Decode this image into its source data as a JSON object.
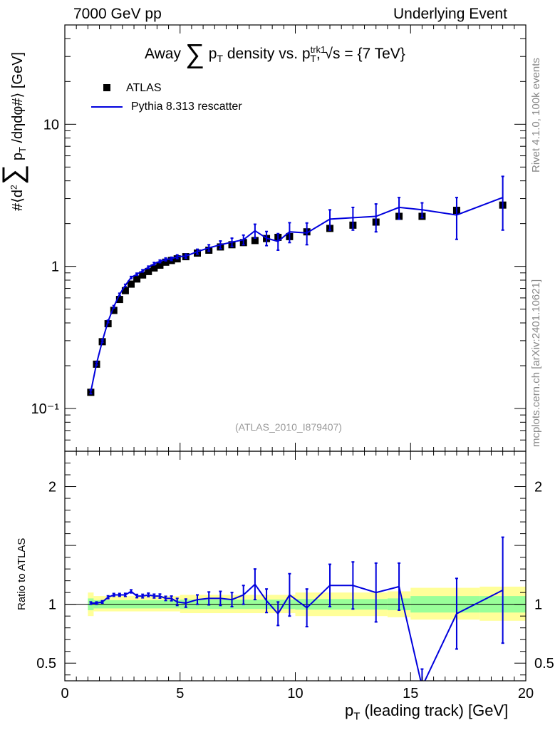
{
  "header": {
    "left": "7000 GeV pp",
    "right": "Underlying Event"
  },
  "side_text": {
    "rivet": "Rivet 4.1.0,  100k events",
    "mcplots": "mcplots.cern.ch [arXiv:2401.10621]"
  },
  "colors": {
    "mc": "#0000dd",
    "data": "#000000",
    "band_inner": "#99ff99",
    "band_outer": "#ffff99"
  },
  "chart_data": [
    {
      "type": "scatter",
      "title": "Away Σ pT density vs. pT^trk1, √s = {7 TeV}",
      "title_parts": {
        "away": "Away",
        "sum": "∑",
        "p": "p",
        "t": "T",
        "rest": "density vs. p",
        "trk": "trk1",
        "t2": "T",
        "tail": ", √s = {7 TeV}"
      },
      "ylabel": "#⟨d² ∑ pT /dηdφ#⟩ [GeV]",
      "ylabel_parts": {
        "a": "#⟨d",
        "sq": "2",
        "sum": "∑",
        "p": " p",
        "t": "T",
        "b": " /dηdφ#⟩ [GeV]"
      },
      "yscale": "log",
      "ylim": [
        0.05,
        50
      ],
      "xlim": [
        0,
        20
      ],
      "yticks": [
        {
          "value": 0.1,
          "label": "10⁻¹"
        },
        {
          "value": 1,
          "label": "1"
        },
        {
          "value": 10,
          "label": "10"
        }
      ],
      "reference": "(ATLAS_2010_I879407)",
      "legend": [
        {
          "name": "ATLAS",
          "marker": "square"
        },
        {
          "name": "Pythia 8.313 rescatter",
          "marker": "line"
        }
      ],
      "series": [
        {
          "name": "ATLAS",
          "x": [
            1.125,
            1.375,
            1.625,
            1.875,
            2.125,
            2.375,
            2.625,
            2.875,
            3.125,
            3.375,
            3.625,
            3.875,
            4.125,
            4.375,
            4.625,
            4.875,
            5.25,
            5.75,
            6.25,
            6.75,
            7.25,
            7.75,
            8.25,
            8.75,
            9.25,
            9.75,
            10.5,
            11.5,
            12.5,
            13.5,
            14.5,
            15.5,
            17.0,
            19.0
          ],
          "values": [
            0.13,
            0.205,
            0.295,
            0.395,
            0.49,
            0.585,
            0.675,
            0.75,
            0.815,
            0.87,
            0.92,
            0.975,
            1.02,
            1.07,
            1.1,
            1.13,
            1.17,
            1.24,
            1.3,
            1.37,
            1.42,
            1.47,
            1.52,
            1.57,
            1.6,
            1.62,
            1.75,
            1.85,
            1.95,
            2.05,
            2.25,
            2.25,
            2.48,
            2.7
          ]
        },
        {
          "name": "Pythia 8.313 rescatter",
          "x": [
            1.125,
            1.375,
            1.625,
            1.875,
            2.125,
            2.375,
            2.625,
            2.875,
            3.125,
            3.375,
            3.625,
            3.875,
            4.125,
            4.375,
            4.625,
            4.875,
            5.25,
            5.75,
            6.25,
            6.75,
            7.25,
            7.75,
            8.25,
            8.75,
            9.25,
            9.75,
            10.5,
            11.5,
            12.5,
            13.5,
            14.5,
            15.5,
            17.0,
            19.0
          ],
          "values": [
            0.131,
            0.207,
            0.298,
            0.41,
            0.52,
            0.635,
            0.735,
            0.835,
            0.88,
            0.93,
            0.985,
            1.045,
            1.085,
            1.12,
            1.13,
            1.17,
            1.18,
            1.27,
            1.35,
            1.42,
            1.48,
            1.54,
            1.78,
            1.58,
            1.5,
            1.75,
            1.72,
            2.15,
            2.2,
            2.25,
            2.6,
            2.5,
            2.3,
            3.05
          ],
          "yerr": [
            0.004,
            0.005,
            0.006,
            0.008,
            0.01,
            0.012,
            0.013,
            0.014,
            0.016,
            0.017,
            0.019,
            0.021,
            0.023,
            0.026,
            0.03,
            0.035,
            0.04,
            0.05,
            0.07,
            0.09,
            0.1,
            0.12,
            0.2,
            0.18,
            0.2,
            0.28,
            0.3,
            0.35,
            0.4,
            0.5,
            0.45,
            0.3,
            0.75,
            1.25
          ]
        }
      ]
    },
    {
      "type": "line",
      "ylabel": "Ratio to ATLAS",
      "xlabel": "pT (leading track) [GeV]",
      "xlabel_parts": {
        "p": "p",
        "t": "T",
        "rest": " (leading track) [GeV]"
      },
      "xlim": [
        0,
        20
      ],
      "ylim": [
        0.35,
        2.3
      ],
      "xticks": [
        0,
        5,
        10,
        15,
        20
      ],
      "yticks": [
        0.5,
        1,
        2
      ],
      "band_inner": [
        {
          "x0": 1.0,
          "x1": 1.25,
          "lo": 0.95,
          "hi": 1.05
        },
        {
          "x0": 1.25,
          "x1": 5.0,
          "lo": 0.965,
          "hi": 1.035
        },
        {
          "x0": 5.0,
          "x1": 10.0,
          "lo": 0.96,
          "hi": 1.04
        },
        {
          "x0": 10.0,
          "x1": 14.0,
          "lo": 0.955,
          "hi": 1.045
        },
        {
          "x0": 14.0,
          "x1": 15.0,
          "lo": 0.95,
          "hi": 1.05
        },
        {
          "x0": 15.0,
          "x1": 18.0,
          "lo": 0.93,
          "hi": 1.07
        },
        {
          "x0": 18.0,
          "x1": 20.0,
          "lo": 0.93,
          "hi": 1.07
        }
      ],
      "band_outer": [
        {
          "x0": 1.0,
          "x1": 1.25,
          "lo": 0.9,
          "hi": 1.1
        },
        {
          "x0": 1.25,
          "x1": 5.0,
          "lo": 0.94,
          "hi": 1.07
        },
        {
          "x0": 5.0,
          "x1": 10.0,
          "lo": 0.925,
          "hi": 1.08
        },
        {
          "x0": 10.0,
          "x1": 14.0,
          "lo": 0.9,
          "hi": 1.1
        },
        {
          "x0": 14.0,
          "x1": 15.0,
          "lo": 0.89,
          "hi": 1.11
        },
        {
          "x0": 15.0,
          "x1": 18.0,
          "lo": 0.87,
          "hi": 1.14
        },
        {
          "x0": 18.0,
          "x1": 20.0,
          "lo": 0.86,
          "hi": 1.15
        }
      ],
      "series": [
        {
          "name": "Pythia 8.313 rescatter / ATLAS",
          "x": [
            1.125,
            1.375,
            1.625,
            1.875,
            2.125,
            2.375,
            2.625,
            2.875,
            3.125,
            3.375,
            3.625,
            3.875,
            4.125,
            4.375,
            4.625,
            4.875,
            5.25,
            5.75,
            6.25,
            6.75,
            7.25,
            7.75,
            8.25,
            8.75,
            9.25,
            9.75,
            10.5,
            11.5,
            12.5,
            13.5,
            14.5,
            15.5,
            17.0,
            19.0
          ],
          "values": [
            1.01,
            1.01,
            1.02,
            1.06,
            1.08,
            1.08,
            1.08,
            1.11,
            1.07,
            1.07,
            1.08,
            1.07,
            1.07,
            1.05,
            1.05,
            1.02,
            1.01,
            1.04,
            1.05,
            1.05,
            1.04,
            1.08,
            1.17,
            1.03,
            0.92,
            1.08,
            0.97,
            1.16,
            1.16,
            1.1,
            1.15,
            0.3,
            0.92,
            1.12
          ],
          "yerr": [
            0.01,
            0.01,
            0.01,
            0.012,
            0.012,
            0.012,
            0.013,
            0.013,
            0.014,
            0.015,
            0.015,
            0.016,
            0.017,
            0.018,
            0.02,
            0.03,
            0.035,
            0.04,
            0.055,
            0.06,
            0.06,
            0.08,
            0.13,
            0.1,
            0.1,
            0.18,
            0.16,
            0.18,
            0.2,
            0.25,
            0.2,
            0.15,
            0.3,
            0.45
          ]
        }
      ]
    }
  ]
}
